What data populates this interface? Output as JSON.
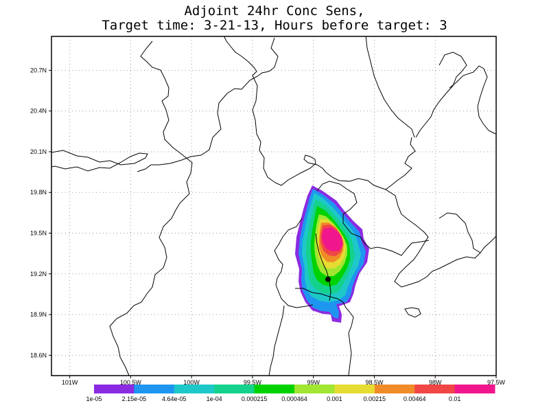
{
  "title": {
    "line1": "Adjoint 24hr Conc Sens,",
    "line2": "Target time: 3-21-13, Hours before target: 3"
  },
  "map": {
    "projection": "lat-lon",
    "lon_range": [
      -101.15,
      -97.5
    ],
    "lat_range": [
      18.45,
      20.95
    ],
    "lat_ticks": [
      "20.7N",
      "20.4N",
      "20.1N",
      "19.8N",
      "19.5N",
      "19.2N",
      "18.9N",
      "18.6N"
    ],
    "lat_values": [
      20.7,
      20.4,
      20.1,
      19.8,
      19.5,
      19.2,
      18.9,
      18.6
    ],
    "lon_ticks": [
      "101W",
      "100.5W",
      "100W",
      "99.5W",
      "99W",
      "98.5W",
      "98W",
      "97.5W"
    ],
    "lon_values": [
      -101.0,
      -100.5,
      -100.0,
      -99.5,
      -99.0,
      -98.5,
      -98.0,
      -97.5
    ],
    "grid": "dotted",
    "target_marker": {
      "lon": -98.88,
      "lat": 19.16
    }
  },
  "colorbar": {
    "labels": [
      "1e-05",
      "2.15e-05",
      "4.64e-05",
      "1e-04",
      "0.000215",
      "0.000464",
      "0.001",
      "0.00215",
      "0.00464",
      "0.01"
    ],
    "colors": [
      "#8a2be2",
      "#1e96f0",
      "#1ec8c8",
      "#14d28c",
      "#00d200",
      "#a0e632",
      "#e6dc32",
      "#f08c28",
      "#f04646",
      "#f0168c"
    ]
  }
}
